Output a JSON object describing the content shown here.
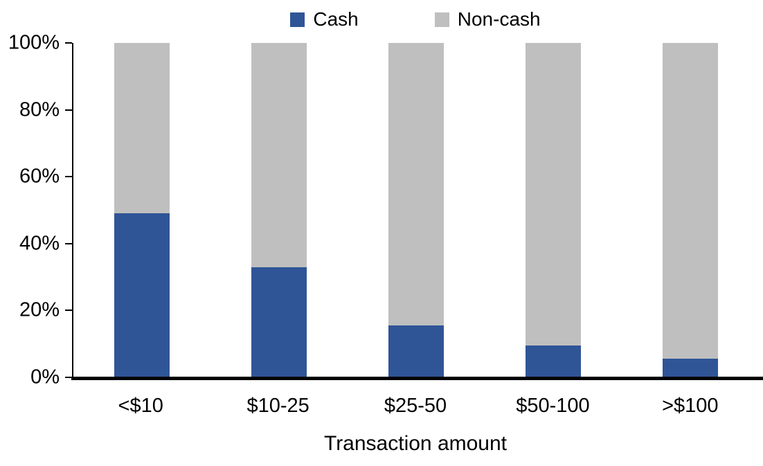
{
  "chart_data": {
    "type": "bar",
    "stacked": true,
    "percent": true,
    "title": "",
    "xlabel": "Transaction amount",
    "ylabel": "",
    "categories": [
      "<$10",
      "$10-25",
      "$25-50",
      "$50-100",
      ">$100"
    ],
    "series": [
      {
        "name": "Cash",
        "color": "#2F5597",
        "values": [
          49,
          33,
          15.5,
          9.5,
          5.5
        ]
      },
      {
        "name": "Non-cash",
        "color": "#BFBFBF",
        "values": [
          51,
          67,
          84.5,
          90.5,
          94.5
        ]
      }
    ],
    "ylim": [
      0,
      100
    ],
    "yticks": [
      "0%",
      "20%",
      "40%",
      "60%",
      "80%",
      "100%"
    ],
    "legend_position": "top",
    "grid": false
  },
  "colors": {
    "axis": "#000000",
    "text": "#000000",
    "background": "#FFFFFF"
  }
}
